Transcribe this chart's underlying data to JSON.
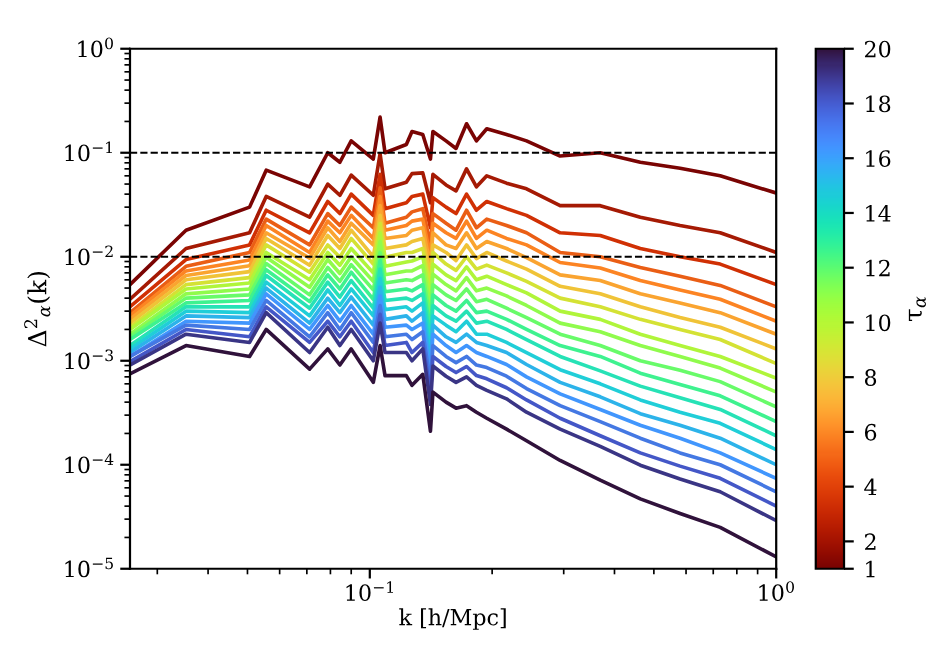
{
  "chart_data": {
    "type": "line",
    "xlabel": "k [h/Mpc]",
    "ylabel": "Δ$^{2}$$_{α}$(k)",
    "clabel": "τ$_{α}$",
    "log": "xy",
    "grid": false,
    "legend": false,
    "marker": "none",
    "line_style": "solid",
    "xlim": [
      0.0257,
      1
    ],
    "xticks": [
      {
        "value": 0.1,
        "label": "10$^{−1}$"
      },
      {
        "value": 1,
        "label": "10$^{0}$"
      }
    ],
    "ylim": [
      1e-05,
      1
    ],
    "yticks": [
      {
        "value": 1e-05,
        "label": "10$^{−5}$"
      },
      {
        "value": 0.0001,
        "label": "10$^{−4}$"
      },
      {
        "value": 0.001,
        "label": "10$^{−3}$"
      },
      {
        "value": 0.01,
        "label": "10$^{−2}$"
      },
      {
        "value": 0.1,
        "label": "10$^{−1}$"
      },
      {
        "value": 1,
        "label": "10$^{0}$"
      }
    ],
    "clim": [
      1,
      20
    ],
    "cticks": [
      1,
      2,
      4,
      6,
      8,
      10,
      12,
      14,
      16,
      18,
      20
    ],
    "ref_lines": [
      {
        "axis": "y",
        "value": 0.1,
        "color": "#000000",
        "line_style": "dashed"
      },
      {
        "axis": "y",
        "value": 0.01,
        "color": "#000000",
        "line_style": "dashed"
      }
    ],
    "x": [
      0.0257,
      0.0353,
      0.0506,
      0.0556,
      0.0711,
      0.0788,
      0.0844,
      0.09,
      0.102,
      0.106,
      0.109,
      0.123,
      0.127,
      0.135,
      0.141,
      0.143,
      0.154,
      0.163,
      0.173,
      0.183,
      0.194,
      0.217,
      0.243,
      0.294,
      0.369,
      0.463,
      0.58,
      0.728,
      1.0
    ],
    "series": [
      {
        "color": "#7a0403",
        "values": [
          0.0054,
          0.018,
          0.03,
          0.068,
          0.047,
          0.1,
          0.081,
          0.13,
          0.087,
          0.22,
          0.1,
          0.12,
          0.16,
          0.15,
          0.087,
          0.16,
          0.13,
          0.11,
          0.19,
          0.13,
          0.17,
          0.15,
          0.13,
          0.093,
          0.1,
          0.081,
          0.071,
          0.06,
          0.041
        ]
      },
      {
        "color": "#a51a04",
        "values": [
          0.0039,
          0.012,
          0.017,
          0.038,
          0.024,
          0.05,
          0.039,
          0.061,
          0.039,
          0.098,
          0.045,
          0.052,
          0.063,
          0.064,
          0.033,
          0.062,
          0.049,
          0.043,
          0.07,
          0.047,
          0.06,
          0.051,
          0.045,
          0.031,
          0.031,
          0.024,
          0.02,
          0.017,
          0.011
        ]
      },
      {
        "color": "#d03004",
        "values": [
          0.0033,
          0.0094,
          0.013,
          0.028,
          0.017,
          0.034,
          0.026,
          0.04,
          0.025,
          0.062,
          0.029,
          0.033,
          0.038,
          0.04,
          0.019,
          0.037,
          0.03,
          0.026,
          0.04,
          0.028,
          0.034,
          0.029,
          0.025,
          0.017,
          0.016,
          0.012,
          0.01,
          0.0085,
          0.0054
        ]
      },
      {
        "color": "#ea5e15",
        "values": [
          0.0029,
          0.0081,
          0.011,
          0.023,
          0.013,
          0.026,
          0.02,
          0.03,
          0.019,
          0.046,
          0.021,
          0.024,
          0.027,
          0.029,
          0.013,
          0.026,
          0.021,
          0.018,
          0.028,
          0.019,
          0.023,
          0.02,
          0.017,
          0.011,
          0.01,
          0.0079,
          0.0065,
          0.0053,
          0.0033
        ]
      },
      {
        "color": "#fc8423",
        "values": [
          0.0027,
          0.0073,
          0.0093,
          0.02,
          0.011,
          0.022,
          0.017,
          0.025,
          0.015,
          0.038,
          0.018,
          0.02,
          0.022,
          0.023,
          0.01,
          0.021,
          0.017,
          0.015,
          0.022,
          0.015,
          0.018,
          0.015,
          0.013,
          0.0088,
          0.0078,
          0.0059,
          0.0048,
          0.0039,
          0.0024
        ]
      },
      {
        "color": "#faa430",
        "values": [
          0.0025,
          0.0066,
          0.0082,
          0.017,
          0.0097,
          0.019,
          0.014,
          0.021,
          0.013,
          0.031,
          0.015,
          0.016,
          0.018,
          0.019,
          0.0082,
          0.017,
          0.013,
          0.012,
          0.017,
          0.012,
          0.014,
          0.012,
          0.0098,
          0.0067,
          0.0059,
          0.0044,
          0.0036,
          0.0029,
          0.0018
        ]
      },
      {
        "color": "#f0c337",
        "values": [
          0.0023,
          0.006,
          0.0072,
          0.015,
          0.0083,
          0.016,
          0.012,
          0.018,
          0.01,
          0.025,
          0.012,
          0.013,
          0.014,
          0.015,
          0.0065,
          0.013,
          0.011,
          0.0092,
          0.013,
          0.0096,
          0.011,
          0.0091,
          0.0076,
          0.0052,
          0.0044,
          0.0033,
          0.0026,
          0.0021,
          0.0013
        ]
      },
      {
        "color": "#d4e234",
        "values": [
          0.0021,
          0.0054,
          0.0063,
          0.013,
          0.0071,
          0.013,
          0.0099,
          0.015,
          0.0085,
          0.021,
          0.0099,
          0.011,
          0.011,
          0.012,
          0.0051,
          0.011,
          0.0085,
          0.0074,
          0.01,
          0.0076,
          0.0083,
          0.007,
          0.0058,
          0.004,
          0.0033,
          0.0025,
          0.002,
          0.0016,
          0.00094
        ]
      },
      {
        "color": "#b0f53a",
        "values": [
          0.002,
          0.0049,
          0.0056,
          0.011,
          0.006,
          0.011,
          0.0083,
          0.012,
          0.007,
          0.017,
          0.0081,
          0.0089,
          0.0091,
          0.01,
          0.004,
          0.0085,
          0.0067,
          0.0059,
          0.008,
          0.006,
          0.0065,
          0.0054,
          0.0045,
          0.003,
          0.0025,
          0.0018,
          0.0014,
          0.0011,
          0.00068
        ]
      },
      {
        "color": "#90fb4c",
        "values": [
          0.0018,
          0.0044,
          0.0049,
          0.0099,
          0.0051,
          0.0094,
          0.0069,
          0.01,
          0.0058,
          0.014,
          0.0067,
          0.0073,
          0.0073,
          0.0082,
          0.0032,
          0.0068,
          0.0054,
          0.0047,
          0.0063,
          0.0047,
          0.005,
          0.0042,
          0.0034,
          0.0023,
          0.0019,
          0.0014,
          0.0011,
          0.00085,
          0.0005
        ]
      },
      {
        "color": "#68fb69",
        "values": [
          0.0017,
          0.004,
          0.0043,
          0.0086,
          0.0043,
          0.0079,
          0.0058,
          0.0084,
          0.0048,
          0.011,
          0.0056,
          0.006,
          0.0059,
          0.0067,
          0.0025,
          0.0054,
          0.0043,
          0.0038,
          0.0049,
          0.0037,
          0.0039,
          0.0032,
          0.0026,
          0.0018,
          0.0014,
          0.001,
          0.00081,
          0.00063,
          0.00036
        ]
      },
      {
        "color": "#3ef28f",
        "values": [
          0.0016,
          0.0036,
          0.0038,
          0.0075,
          0.0037,
          0.0067,
          0.0049,
          0.0071,
          0.0039,
          0.0092,
          0.0046,
          0.0049,
          0.0047,
          0.0054,
          0.002,
          0.0043,
          0.0034,
          0.003,
          0.0038,
          0.0029,
          0.003,
          0.0025,
          0.002,
          0.0014,
          0.0011,
          0.00076,
          0.00059,
          0.00046,
          0.00026
        ]
      },
      {
        "color": "#26e2b6",
        "values": [
          0.0014,
          0.0033,
          0.0033,
          0.0066,
          0.0032,
          0.0057,
          0.0041,
          0.0059,
          0.0032,
          0.0076,
          0.0038,
          0.004,
          0.0038,
          0.0044,
          0.0016,
          0.0034,
          0.0027,
          0.0024,
          0.003,
          0.0023,
          0.0024,
          0.002,
          0.0016,
          0.0011,
          0.0008,
          0.00057,
          0.00044,
          0.00034,
          0.00019
        ]
      },
      {
        "color": "#20ced8",
        "values": [
          0.0013,
          0.003,
          0.0029,
          0.0057,
          0.0027,
          0.0048,
          0.0034,
          0.0049,
          0.0027,
          0.0062,
          0.0031,
          0.0033,
          0.003,
          0.0036,
          0.0012,
          0.0027,
          0.0022,
          0.0019,
          0.0024,
          0.0018,
          0.0018,
          0.0015,
          0.0012,
          0.00082,
          0.0006,
          0.00042,
          0.00032,
          0.00025,
          0.00014
        ]
      },
      {
        "color": "#2cb3ea",
        "values": [
          0.0012,
          0.0027,
          0.0026,
          0.005,
          0.0023,
          0.004,
          0.0029,
          0.0041,
          0.0022,
          0.0051,
          0.0025,
          0.0027,
          0.0024,
          0.0029,
          0.00097,
          0.0022,
          0.0017,
          0.0015,
          0.0018,
          0.0015,
          0.0014,
          0.0012,
          0.00092,
          0.00062,
          0.00045,
          0.00031,
          0.00024,
          0.00018,
          0.0001
        ]
      },
      {
        "color": "#4196fd",
        "values": [
          0.0011,
          0.0024,
          0.0023,
          0.0044,
          0.002,
          0.0034,
          0.0024,
          0.0034,
          0.0018,
          0.0042,
          0.0021,
          0.0022,
          0.002,
          0.0023,
          0.00077,
          0.0018,
          0.0014,
          0.0012,
          0.0014,
          0.0012,
          0.0011,
          0.00092,
          0.0007,
          0.00048,
          0.00034,
          0.00024,
          0.00018,
          0.00013,
          7.4e-05
        ]
      },
      {
        "color": "#4478e3",
        "values": [
          0.0011,
          0.0022,
          0.002,
          0.0038,
          0.0017,
          0.0029,
          0.002,
          0.0029,
          0.0015,
          0.0034,
          0.0017,
          0.0018,
          0.0016,
          0.0019,
          0.00061,
          0.0014,
          0.0011,
          0.00096,
          0.0011,
          0.00091,
          0.00086,
          0.00071,
          0.00054,
          0.00037,
          0.00026,
          0.00018,
          0.00013,
          0.0001,
          5.5e-05
        ]
      },
      {
        "color": "#4457c7",
        "values": [
          0.00098,
          0.002,
          0.0017,
          0.0033,
          0.0015,
          0.0024,
          0.0017,
          0.0024,
          0.0012,
          0.0028,
          0.0014,
          0.0015,
          0.0012,
          0.0015,
          0.00048,
          0.0011,
          0.00088,
          0.00077,
          0.00088,
          0.00072,
          0.00067,
          0.00055,
          0.00042,
          0.00028,
          0.00019,
          0.00013,
          9.7e-05,
          7.4e-05,
          4e-05
        ]
      },
      {
        "color": "#3a3585",
        "values": [
          0.00091,
          0.0018,
          0.0015,
          0.0029,
          0.0012,
          0.0021,
          0.0014,
          0.002,
          0.001,
          0.0023,
          0.0012,
          0.0012,
          0.001,
          0.0013,
          0.00038,
          0.00089,
          0.00071,
          0.00062,
          0.0007,
          0.00058,
          0.00052,
          0.00043,
          0.00032,
          0.00022,
          0.00015,
          9.9e-05,
          7.3e-05,
          5.5e-05,
          2.9e-05
        ]
      },
      {
        "color": "#30123b",
        "values": [
          0.00075,
          0.0014,
          0.0011,
          0.002,
          0.00083,
          0.0013,
          0.00091,
          0.0013,
          0.00062,
          0.0014,
          0.00072,
          0.00072,
          0.00058,
          0.00074,
          0.00021,
          0.0005,
          0.0004,
          0.00035,
          0.00037,
          0.00032,
          0.00028,
          0.00022,
          0.00017,
          0.00011,
          7.1e-05,
          4.7e-05,
          3.4e-05,
          2.5e-05,
          1.3e-05
        ]
      }
    ]
  }
}
